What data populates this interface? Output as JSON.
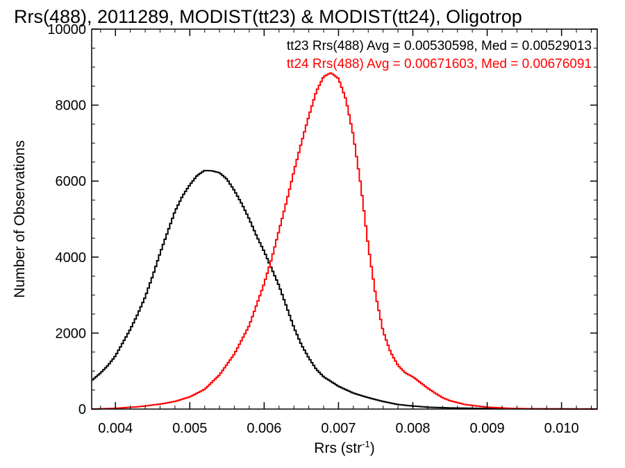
{
  "chart_data": {
    "type": "line",
    "title": "Rrs(488), 2011289, MODIST(tt23) & MODIST(tt24), Oligotrop",
    "xlabel": "Rrs (str",
    "xlabel_sup": "-1",
    "xlabel_end": ")",
    "ylabel": "Number of Observations",
    "xlim": [
      0.00368,
      0.01048
    ],
    "ylim": [
      0,
      10000
    ],
    "xticks": [
      0.004,
      0.005,
      0.006,
      0.007,
      0.008,
      0.009,
      0.01
    ],
    "xtick_labels": [
      "0.004",
      "0.005",
      "0.006",
      "0.007",
      "0.008",
      "0.009",
      "0.010"
    ],
    "yticks": [
      0,
      2000,
      4000,
      6000,
      8000,
      10000
    ],
    "ytick_labels": [
      "0",
      "2000",
      "4000",
      "6000",
      "8000",
      "10000"
    ],
    "grid": false,
    "series": [
      {
        "name": "tt23",
        "color": "#000000",
        "annotation": "tt23 Rrs(488) Avg = 0.00530598, Med = 0.00529013",
        "x": [
          0.00368,
          0.0038,
          0.0039,
          0.004,
          0.0041,
          0.0042,
          0.0043,
          0.0044,
          0.0045,
          0.0046,
          0.0047,
          0.0048,
          0.0049,
          0.005,
          0.0051,
          0.0052,
          0.0053,
          0.0054,
          0.0055,
          0.0056,
          0.0057,
          0.0058,
          0.0059,
          0.006,
          0.0061,
          0.0062,
          0.0063,
          0.0064,
          0.0065,
          0.0066,
          0.0067,
          0.0068,
          0.007,
          0.0072,
          0.0074,
          0.0076,
          0.0078,
          0.008,
          0.0082,
          0.0085,
          0.009,
          0.0095,
          0.01,
          0.01048
        ],
        "y": [
          750,
          950,
          1150,
          1400,
          1750,
          2100,
          2500,
          2950,
          3500,
          4100,
          4650,
          5200,
          5600,
          5900,
          6150,
          6280,
          6270,
          6220,
          6050,
          5750,
          5400,
          5000,
          4550,
          4150,
          3700,
          3250,
          2700,
          2150,
          1700,
          1350,
          1050,
          850,
          600,
          420,
          300,
          200,
          120,
          80,
          50,
          30,
          15,
          8,
          4,
          2
        ]
      },
      {
        "name": "tt24",
        "color": "#ff0000",
        "annotation": "tt24 Rrs(488) Avg = 0.00671603, Med = 0.00676091",
        "x": [
          0.00368,
          0.004,
          0.0043,
          0.0046,
          0.0048,
          0.005,
          0.0052,
          0.0054,
          0.0056,
          0.0058,
          0.006,
          0.0061,
          0.0062,
          0.0063,
          0.0064,
          0.0065,
          0.0066,
          0.0067,
          0.0068,
          0.0069,
          0.007,
          0.0071,
          0.0072,
          0.0073,
          0.0074,
          0.0075,
          0.0076,
          0.0077,
          0.0078,
          0.0079,
          0.008,
          0.0081,
          0.0082,
          0.0083,
          0.0084,
          0.0085,
          0.0087,
          0.009,
          0.0093,
          0.0096,
          0.01,
          0.01048
        ],
        "y": [
          0,
          20,
          60,
          130,
          200,
          320,
          520,
          900,
          1450,
          2200,
          3300,
          3950,
          4700,
          5450,
          6250,
          7000,
          7700,
          8350,
          8750,
          8850,
          8700,
          8150,
          7200,
          5900,
          4300,
          3000,
          2050,
          1500,
          1150,
          950,
          850,
          700,
          550,
          420,
          300,
          220,
          120,
          50,
          20,
          8,
          3,
          1
        ]
      }
    ]
  }
}
